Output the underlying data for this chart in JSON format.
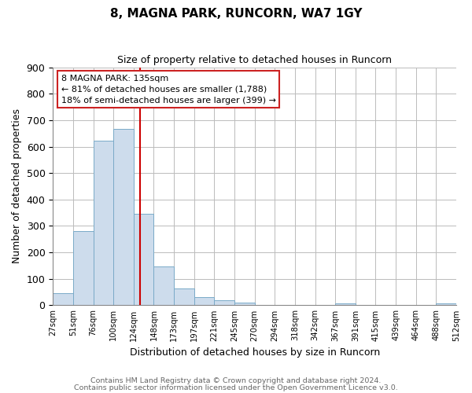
{
  "title": "8, MAGNA PARK, RUNCORN, WA7 1GY",
  "subtitle": "Size of property relative to detached houses in Runcorn",
  "xlabel": "Distribution of detached houses by size in Runcorn",
  "ylabel": "Number of detached properties",
  "footnote1": "Contains HM Land Registry data © Crown copyright and database right 2024.",
  "footnote2": "Contains public sector information licensed under the Open Government Licence v3.0.",
  "bar_heights": [
    45,
    280,
    622,
    668,
    345,
    148,
    65,
    30,
    20,
    11,
    0,
    0,
    0,
    0,
    8,
    0,
    0,
    0,
    0,
    7
  ],
  "n_bars": 20,
  "bar_color": "#cddcec",
  "bar_edgecolor": "#7aaac8",
  "grid_color": "#bbbbbb",
  "vline_bin": 4.33,
  "vline_color": "#cc0000",
  "annotation_line1": "8 MAGNA PARK: 135sqm",
  "annotation_line2": "← 81% of detached houses are smaller (1,788)",
  "annotation_line3": "18% of semi-detached houses are larger (399) →",
  "ylim": [
    0,
    900
  ],
  "yticks": [
    0,
    100,
    200,
    300,
    400,
    500,
    600,
    700,
    800,
    900
  ],
  "xtick_labels": [
    "27sqm",
    "51sqm",
    "76sqm",
    "100sqm",
    "124sqm",
    "148sqm",
    "173sqm",
    "197sqm",
    "221sqm",
    "245sqm",
    "270sqm",
    "294sqm",
    "318sqm",
    "342sqm",
    "367sqm",
    "391sqm",
    "415sqm",
    "439sqm",
    "464sqm",
    "488sqm",
    "512sqm"
  ],
  "background_color": "#ffffff",
  "plot_bg_color": "#ffffff",
  "title_fontsize": 11,
  "subtitle_fontsize": 9,
  "footnote_fontsize": 6.8,
  "footnote_color": "#666666"
}
